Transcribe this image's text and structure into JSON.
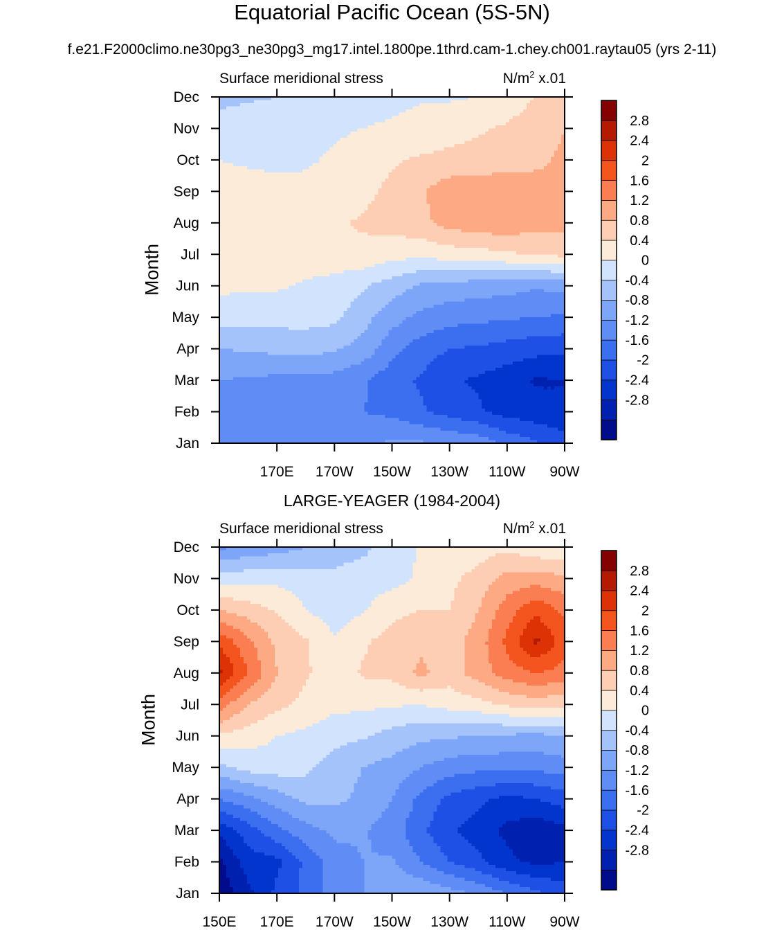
{
  "page": {
    "title": "Equatorial Pacific Ocean (5S-5N)",
    "subtitle": "f.e21.F2000climo.ne30pg3_ne30pg3_mg17.intel.1800pe.1thrd.cam-1.chey.ch001.raytau05 (yrs 2-11)"
  },
  "panels": [
    {
      "title": "",
      "left_label": "Surface meridional stress",
      "units_base": "N/m",
      "units_sup": "2",
      "units_suffix": " x.01",
      "ylabel": "Month"
    },
    {
      "title": "LARGE-YEAGER (1984-2004)",
      "left_label": "Surface meridional stress",
      "units_base": "N/m",
      "units_sup": "2",
      "units_suffix": " x.01",
      "ylabel": "Month"
    }
  ],
  "colors": {
    "levels": [
      "#000c8c",
      "#0020b0",
      "#0235cd",
      "#1e50e6",
      "#3c6ef0",
      "#5f8cf5",
      "#7ea6f8",
      "#a5c3fb",
      "#d2e4fd",
      "#fdebda",
      "#fdcdb4",
      "#fca984",
      "#fb7e52",
      "#f4541e",
      "#dc3206",
      "#b31a00",
      "#850000"
    ],
    "background": "#ffffff"
  },
  "chart_data": [
    {
      "type": "heatmap",
      "title": "Surface meridional stress",
      "units": "N/m^2 x.01",
      "ylabel": "Month",
      "x_range": [
        150,
        270
      ],
      "x_ticks": [
        170,
        190,
        210,
        230,
        250,
        270
      ],
      "x_tick_labels": [
        "170E",
        "170W",
        "150W",
        "130W",
        "110W",
        "90W"
      ],
      "y_labels": [
        "Jan",
        "Feb",
        "Mar",
        "Apr",
        "May",
        "Jun",
        "Jul",
        "Aug",
        "Sep",
        "Oct",
        "Nov",
        "Dec"
      ],
      "x": [
        150,
        160,
        170,
        180,
        190,
        200,
        210,
        220,
        230,
        240,
        250,
        260,
        270
      ],
      "z": [
        [
          -1.1,
          -1.1,
          -1.1,
          -1.1,
          -1.05,
          -0.85,
          -0.75,
          -0.75,
          -0.85,
          -0.95,
          -1.3,
          -1.55,
          -1.75
        ],
        [
          -1.1,
          -1.1,
          -1.15,
          -1.15,
          -1.15,
          -1.2,
          -1.3,
          -1.55,
          -1.75,
          -1.95,
          -2.15,
          -2.25,
          -2.4
        ],
        [
          -0.8,
          -0.85,
          -0.9,
          -0.9,
          -0.95,
          -1.15,
          -1.45,
          -1.65,
          -1.95,
          -2.05,
          -2.25,
          -2.45,
          -2.4
        ],
        [
          -0.4,
          -0.35,
          -0.3,
          -0.25,
          -0.35,
          -0.55,
          -1.05,
          -1.4,
          -1.6,
          -1.65,
          -1.75,
          -1.85,
          -1.9
        ],
        [
          0.15,
          0.15,
          0.15,
          0.15,
          0.1,
          -0.25,
          -0.65,
          -0.9,
          -1.05,
          -1.1,
          -1.15,
          -1.2,
          -1.25
        ],
        [
          0.5,
          0.45,
          0.45,
          0.35,
          0.25,
          0.05,
          -0.2,
          -0.45,
          -0.55,
          -0.6,
          -0.65,
          -0.75,
          -0.65
        ],
        [
          0.55,
          0.55,
          0.55,
          0.6,
          0.65,
          0.7,
          0.55,
          0.5,
          0.6,
          0.65,
          0.75,
          0.8,
          0.9
        ],
        [
          0.65,
          0.65,
          0.65,
          0.7,
          0.75,
          0.85,
          0.95,
          1.1,
          1.35,
          1.45,
          1.5,
          1.35,
          1.3
        ],
        [
          0.55,
          0.55,
          0.55,
          0.5,
          0.55,
          0.7,
          0.9,
          1.15,
          1.45,
          1.5,
          1.45,
          1.3,
          1.2
        ],
        [
          0.4,
          0.35,
          0.3,
          0.35,
          0.45,
          0.55,
          0.75,
          0.85,
          0.9,
          0.95,
          1.0,
          1.15,
          1.25
        ],
        [
          0.15,
          0.2,
          0.25,
          0.3,
          0.35,
          0.4,
          0.45,
          0.55,
          0.65,
          0.75,
          0.85,
          1.05,
          1.2
        ],
        [
          -0.1,
          -0.05,
          0.0,
          0.05,
          0.15,
          0.25,
          0.3,
          0.35,
          0.35,
          0.4,
          0.55,
          0.8,
          1.0
        ]
      ]
    },
    {
      "type": "heatmap",
      "title": "LARGE-YEAGER (1984-2004) Surface meridional stress",
      "units": "N/m^2 x.01",
      "ylabel": "Month",
      "x_range": [
        150,
        270
      ],
      "x_ticks": [
        150,
        170,
        190,
        210,
        230,
        250,
        270
      ],
      "x_tick_labels": [
        "150E",
        "170E",
        "170W",
        "150W",
        "130W",
        "110W",
        "90W"
      ],
      "y_labels": [
        "Jan",
        "Feb",
        "Mar",
        "Apr",
        "May",
        "Jun",
        "Jul",
        "Aug",
        "Sep",
        "Oct",
        "Nov",
        "Dec"
      ],
      "x": [
        150,
        160,
        170,
        180,
        190,
        200,
        210,
        220,
        230,
        240,
        250,
        260,
        270
      ],
      "z": [
        [
          -3.1,
          -2.5,
          -1.9,
          -1.5,
          -1.0,
          -0.8,
          -0.5,
          -0.45,
          -0.65,
          -0.85,
          -1.2,
          -1.5,
          -1.75
        ],
        [
          -2.9,
          -2.2,
          -2.1,
          -1.5,
          -1.0,
          -0.8,
          -0.75,
          -1.2,
          -1.6,
          -1.9,
          -2.3,
          -2.5,
          -2.4
        ],
        [
          -2.3,
          -1.8,
          -1.3,
          -0.95,
          -0.7,
          -0.75,
          -1.0,
          -1.5,
          -1.95,
          -2.2,
          -2.5,
          -2.7,
          -2.5
        ],
        [
          -1.2,
          -0.9,
          -0.6,
          -0.3,
          -0.3,
          -0.5,
          -0.8,
          -1.3,
          -1.7,
          -1.9,
          -2.1,
          -2.0,
          -1.8
        ],
        [
          -0.1,
          0.15,
          0.2,
          0.1,
          -0.2,
          -0.4,
          -0.55,
          -0.8,
          -1.0,
          -1.1,
          -1.1,
          -1.1,
          -1.0
        ],
        [
          0.75,
          0.6,
          0.4,
          0.3,
          0.15,
          0.05,
          -0.15,
          -0.3,
          -0.35,
          -0.4,
          -0.45,
          -0.5,
          -0.4
        ],
        [
          1.8,
          1.2,
          0.9,
          0.7,
          0.5,
          0.5,
          0.45,
          0.4,
          0.55,
          0.65,
          0.85,
          1.0,
          0.9
        ],
        [
          2.9,
          2.0,
          1.2,
          0.85,
          0.6,
          0.85,
          0.9,
          1.3,
          1.0,
          1.4,
          1.8,
          2.0,
          1.85
        ],
        [
          2.3,
          1.7,
          1.1,
          0.85,
          0.45,
          0.75,
          0.95,
          1.1,
          1.0,
          1.4,
          2.1,
          2.9,
          2.2
        ],
        [
          1.2,
          1.0,
          0.75,
          0.4,
          0.2,
          0.35,
          0.7,
          0.8,
          0.8,
          1.2,
          1.8,
          2.3,
          1.9
        ],
        [
          0.2,
          0.25,
          0.3,
          0.2,
          0.1,
          0.2,
          0.25,
          0.45,
          0.7,
          0.95,
          1.35,
          1.4,
          1.3
        ],
        [
          -0.9,
          -0.7,
          -0.6,
          -0.4,
          -0.2,
          -0.1,
          0.2,
          0.45,
          0.5,
          0.6,
          0.7,
          0.5,
          0.4
        ]
      ]
    }
  ],
  "colorbar": {
    "labels": [
      "2.8",
      "2.4",
      "2",
      "1.6",
      "1.2",
      "0.8",
      "0.4",
      "0",
      "-0.4",
      "-0.8",
      "-1.2",
      "-1.6",
      "-2",
      "-2.4",
      "-2.8"
    ]
  }
}
